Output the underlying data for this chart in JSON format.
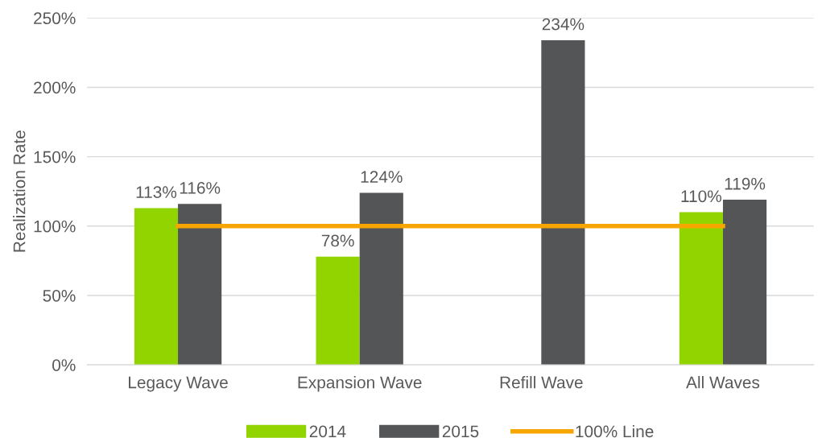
{
  "chart_data": {
    "type": "bar",
    "ylabel": "Realization Rate",
    "categories": [
      "Legacy Wave",
      "Expansion Wave",
      "Refill Wave",
      "All Waves"
    ],
    "series": [
      {
        "name": "2014",
        "color": "#92d400",
        "values": [
          113,
          78,
          null,
          110
        ],
        "value_labels": [
          "113%",
          "78%",
          null,
          "110%"
        ]
      },
      {
        "name": "2015",
        "color": "#545557",
        "values": [
          116,
          124,
          234,
          119
        ],
        "value_labels": [
          "116%",
          "124%",
          "234%",
          "119%"
        ]
      },
      {
        "name": "100% Line",
        "type": "line",
        "color": "#f7a600",
        "values": [
          100,
          100,
          100,
          100
        ]
      }
    ],
    "ylim": [
      0,
      250
    ],
    "yticks": [
      {
        "value": 0,
        "label": "0%"
      },
      {
        "value": 50,
        "label": "50%"
      },
      {
        "value": 100,
        "label": "100%"
      },
      {
        "value": 150,
        "label": "150%"
      },
      {
        "value": 200,
        "label": "200%"
      },
      {
        "value": 250,
        "label": "250%"
      }
    ],
    "grid": "y",
    "legend": "bottom",
    "marker": "none",
    "line_style": "solid"
  }
}
